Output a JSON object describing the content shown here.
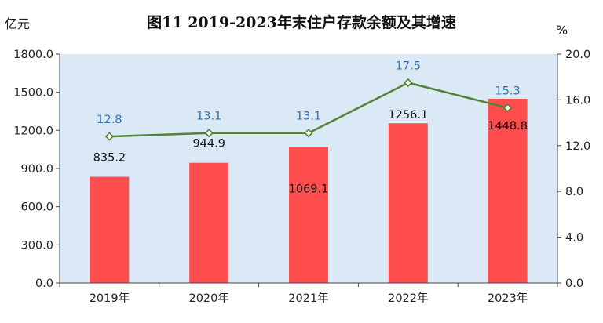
{
  "chart_data": {
    "type": "bar",
    "title": "图11   2019-2023年末住户存款余额及其增速",
    "y_unit_left": "亿元",
    "y_unit_right": "%",
    "categories": [
      "2019年",
      "2020年",
      "2021年",
      "2022年",
      "2023年"
    ],
    "series": [
      {
        "type": "bar",
        "axis": "left",
        "color": "#ff4d4d",
        "values": [
          835.2,
          944.9,
          1069.1,
          1256.1,
          1448.8
        ],
        "labels": [
          "835.2",
          "944.9",
          "1069.1",
          "1256.1",
          "1448.8"
        ]
      },
      {
        "type": "line",
        "axis": "right",
        "color": "#548235",
        "label_color": "#2e74b5",
        "values": [
          12.8,
          13.1,
          13.1,
          17.5,
          15.3
        ],
        "labels": [
          "12.8",
          "13.1",
          "13.1",
          "17.5",
          "15.3"
        ]
      }
    ],
    "y_left": {
      "min": 0,
      "max": 1800,
      "ticks": [
        "0.0",
        "300.0",
        "600.0",
        "900.0",
        "1200.0",
        "1500.0",
        "1800.0"
      ]
    },
    "y_right": {
      "min": 0,
      "max": 20,
      "ticks": [
        "0.0",
        "4.0",
        "8.0",
        "12.0",
        "16.0",
        "20.0"
      ]
    },
    "plot_background": "#dbe9f7",
    "grid": false,
    "legend": "none"
  }
}
